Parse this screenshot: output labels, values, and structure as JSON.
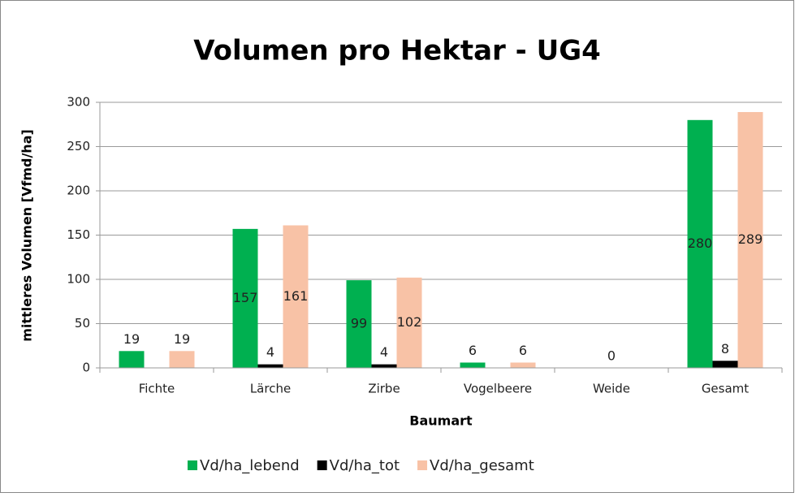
{
  "chart_data": {
    "type": "bar",
    "title": "Volumen pro Hektar - UG4",
    "x_label": "Baumart",
    "y_label": "mittleres Volumen [Vfmd/ha]",
    "categories": [
      "Fichte",
      "Lärche",
      "Zirbe",
      "Vogelbeere",
      "Weide",
      "Gesamt"
    ],
    "series": [
      {
        "name": "Vd/ha_lebend",
        "color": "#00b050",
        "values": [
          19,
          157,
          99,
          6,
          null,
          280
        ]
      },
      {
        "name": "Vd/ha_tot",
        "color": "#000000",
        "values": [
          null,
          4,
          4,
          null,
          0,
          8
        ]
      },
      {
        "name": "Vd/ha_gesamt",
        "color": "#f8c2a6",
        "values": [
          19,
          161,
          102,
          6,
          null,
          289
        ]
      }
    ],
    "ylim": [
      0,
      300
    ],
    "yticks": [
      0,
      50,
      100,
      150,
      200,
      250,
      300
    ],
    "grid": true,
    "legend": "bottom"
  }
}
